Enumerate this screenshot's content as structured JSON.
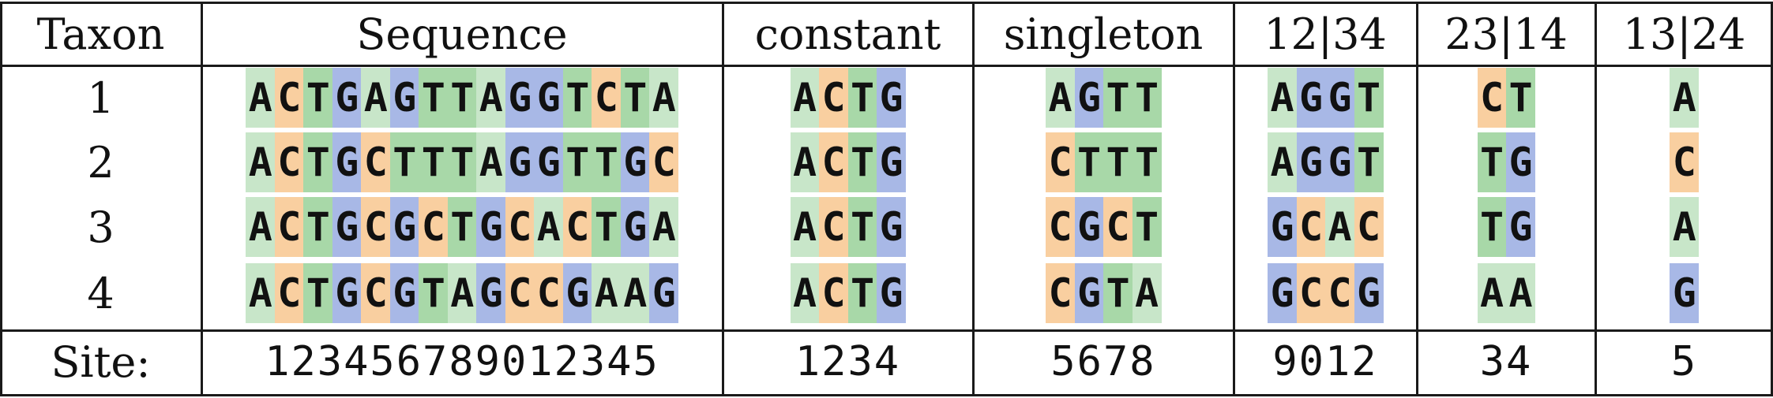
{
  "columns": [
    {
      "header": "Taxon"
    },
    {
      "header": "Sequence",
      "sites": "123456789012345",
      "rows": [
        "ACTGAGTTAGGTCTA",
        "ACTGCTTTAGGTTGC",
        "ACTGCGCTGCACTGA",
        "ACTGCGTAGCCGAAG"
      ]
    },
    {
      "header": "constant",
      "sites": "1234",
      "rows": [
        "ACTG",
        "ACTG",
        "ACTG",
        "ACTG"
      ]
    },
    {
      "header": "singleton",
      "sites": "5678",
      "rows": [
        "AGTT",
        "CTTT",
        "CGCT",
        "CGTA"
      ]
    },
    {
      "header": "12|34",
      "sites": "9012",
      "rows": [
        "AGGT",
        "AGGT",
        "GCAC",
        "GCCG"
      ]
    },
    {
      "header": "23|14",
      "sites": "34",
      "rows": [
        "CT",
        "TG",
        "TG",
        "AA"
      ]
    },
    {
      "header": "13|24",
      "sites": "5",
      "rows": [
        "A",
        "C",
        "A",
        "G"
      ]
    }
  ],
  "taxa": [
    "1",
    "2",
    "3",
    "4"
  ],
  "site_label": "Site:",
  "colors": {
    "A": "#c8e6c9",
    "C": "#f9cfa0",
    "G": "#a8b8e6",
    "T": "#a8d8a8",
    "border": "#1a1a1a"
  }
}
